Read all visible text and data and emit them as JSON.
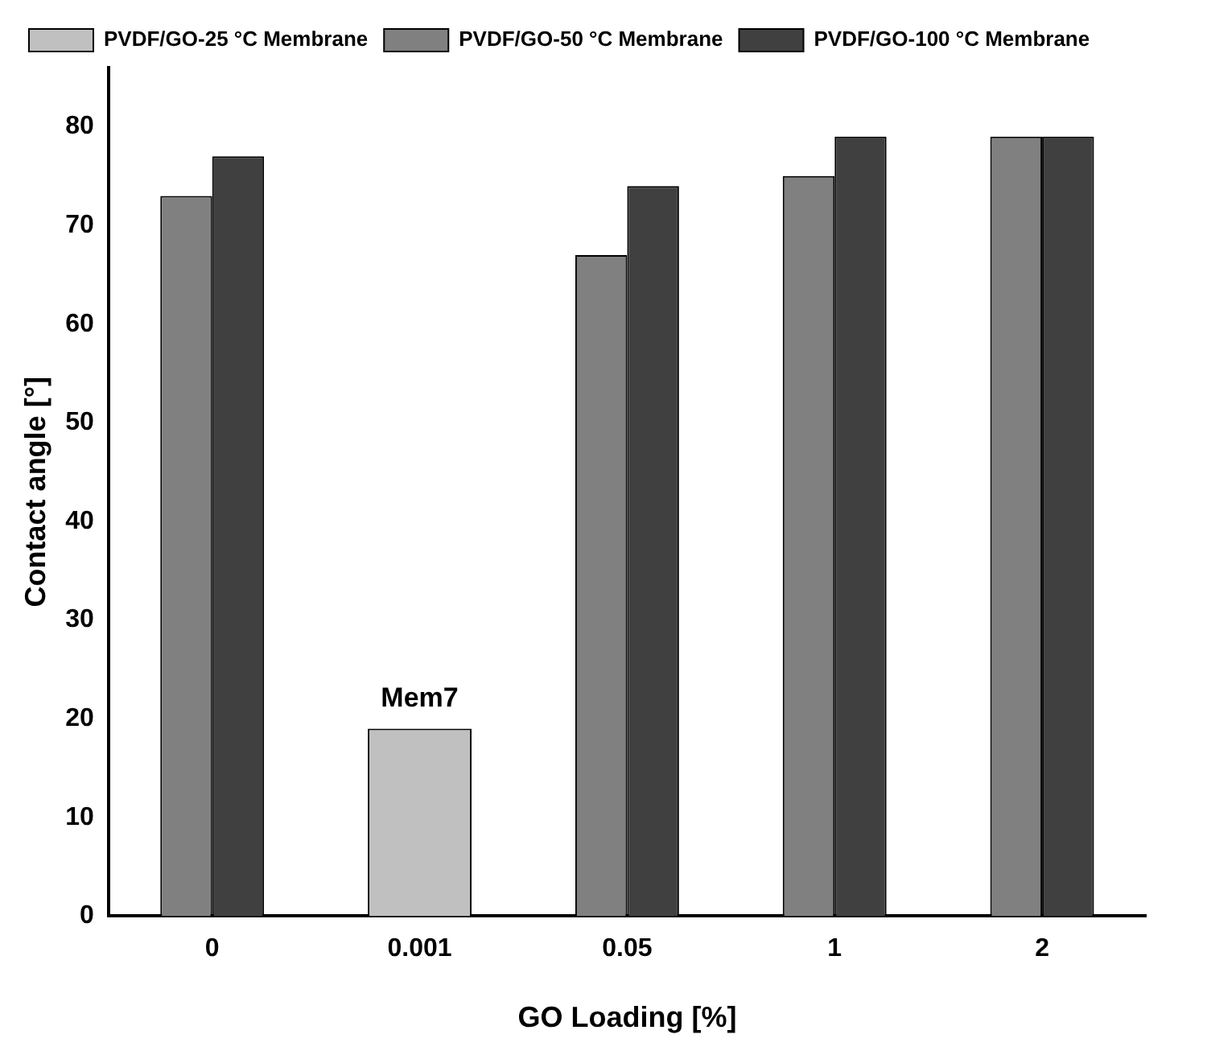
{
  "chart_data": {
    "type": "bar",
    "xlabel": "GO Loading [%]",
    "ylabel": "Contact angle [°]",
    "categories": [
      "0",
      "0.001",
      "0.05",
      "1",
      "2"
    ],
    "series": [
      {
        "name": "PVDF/GO-25 °C Membrane",
        "color": "#c0c0c0",
        "values": [
          null,
          19,
          null,
          null,
          null
        ]
      },
      {
        "name": "PVDF/GO-50 °C Membrane",
        "color": "#808080",
        "values": [
          73,
          null,
          67,
          75,
          79
        ]
      },
      {
        "name": "PVDF/GO-100 °C Membrane",
        "color": "#404040",
        "values": [
          77,
          null,
          74,
          79,
          79
        ]
      }
    ],
    "ylim": [
      0,
      86
    ],
    "yticks": [
      0,
      10,
      20,
      30,
      40,
      50,
      60,
      70,
      80
    ],
    "annotations": [
      {
        "text": "Mem7",
        "x": "0.001",
        "y": 19
      }
    ],
    "legend": "top left",
    "grid": false
  }
}
